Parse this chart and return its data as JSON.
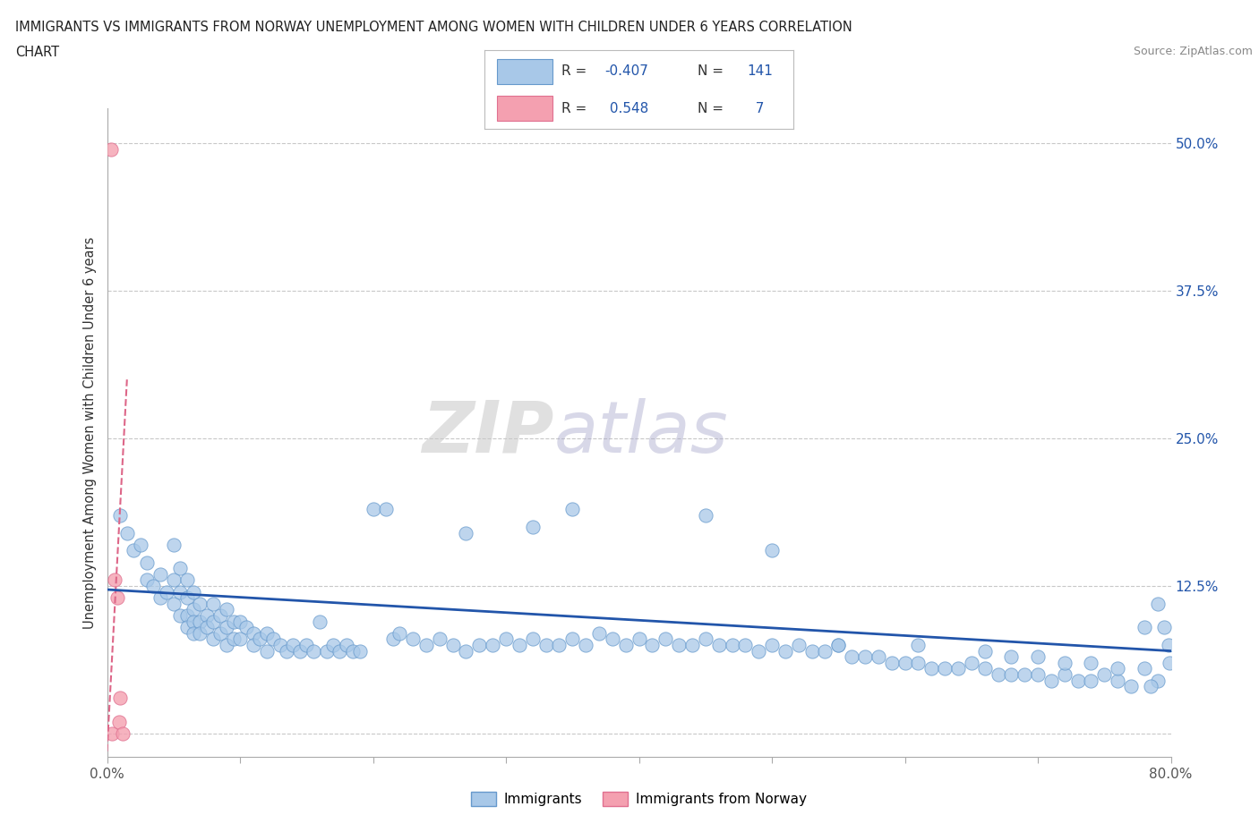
{
  "title_line1": "IMMIGRANTS VS IMMIGRANTS FROM NORWAY UNEMPLOYMENT AMONG WOMEN WITH CHILDREN UNDER 6 YEARS CORRELATION",
  "title_line2": "CHART",
  "source": "Source: ZipAtlas.com",
  "ylabel": "Unemployment Among Women with Children Under 6 years",
  "xmin": 0.0,
  "xmax": 0.8,
  "ymin": -0.02,
  "ymax": 0.53,
  "right_yticks": [
    0.0,
    0.125,
    0.25,
    0.375,
    0.5
  ],
  "right_yticklabels": [
    "",
    "12.5%",
    "25.0%",
    "37.5%",
    "50.0%"
  ],
  "grid_color": "#c8c8c8",
  "background_color": "#ffffff",
  "blue_color": "#a8c8e8",
  "blue_edge_color": "#6699cc",
  "pink_color": "#f4a0b0",
  "pink_edge_color": "#e07090",
  "blue_line_color": "#2255aa",
  "pink_line_color": "#dd6688",
  "R_blue": -0.407,
  "N_blue": 141,
  "R_pink": 0.548,
  "N_pink": 7,
  "blue_scatter_x": [
    0.01,
    0.015,
    0.02,
    0.025,
    0.03,
    0.03,
    0.035,
    0.04,
    0.04,
    0.045,
    0.05,
    0.05,
    0.05,
    0.055,
    0.055,
    0.055,
    0.06,
    0.06,
    0.06,
    0.06,
    0.065,
    0.065,
    0.065,
    0.065,
    0.07,
    0.07,
    0.07,
    0.075,
    0.075,
    0.08,
    0.08,
    0.08,
    0.085,
    0.085,
    0.09,
    0.09,
    0.09,
    0.095,
    0.095,
    0.1,
    0.1,
    0.105,
    0.11,
    0.11,
    0.115,
    0.12,
    0.12,
    0.125,
    0.13,
    0.135,
    0.14,
    0.145,
    0.15,
    0.155,
    0.16,
    0.165,
    0.17,
    0.175,
    0.18,
    0.185,
    0.19,
    0.2,
    0.21,
    0.215,
    0.22,
    0.23,
    0.24,
    0.25,
    0.26,
    0.27,
    0.28,
    0.29,
    0.3,
    0.31,
    0.32,
    0.33,
    0.34,
    0.35,
    0.36,
    0.37,
    0.38,
    0.39,
    0.4,
    0.41,
    0.42,
    0.43,
    0.44,
    0.45,
    0.46,
    0.47,
    0.48,
    0.49,
    0.5,
    0.51,
    0.52,
    0.53,
    0.54,
    0.55,
    0.56,
    0.57,
    0.58,
    0.59,
    0.6,
    0.61,
    0.62,
    0.63,
    0.64,
    0.65,
    0.66,
    0.67,
    0.68,
    0.69,
    0.7,
    0.71,
    0.72,
    0.73,
    0.74,
    0.75,
    0.76,
    0.77,
    0.5,
    0.35,
    0.45,
    0.27,
    0.32,
    0.55,
    0.61,
    0.66,
    0.68,
    0.7,
    0.72,
    0.74,
    0.76,
    0.78,
    0.79,
    0.795,
    0.798,
    0.799,
    0.79,
    0.785,
    0.78
  ],
  "blue_scatter_y": [
    0.185,
    0.17,
    0.155,
    0.16,
    0.145,
    0.13,
    0.125,
    0.135,
    0.115,
    0.12,
    0.16,
    0.13,
    0.11,
    0.14,
    0.12,
    0.1,
    0.13,
    0.115,
    0.1,
    0.09,
    0.12,
    0.105,
    0.095,
    0.085,
    0.11,
    0.095,
    0.085,
    0.1,
    0.09,
    0.11,
    0.095,
    0.08,
    0.1,
    0.085,
    0.105,
    0.09,
    0.075,
    0.095,
    0.08,
    0.095,
    0.08,
    0.09,
    0.085,
    0.075,
    0.08,
    0.085,
    0.07,
    0.08,
    0.075,
    0.07,
    0.075,
    0.07,
    0.075,
    0.07,
    0.095,
    0.07,
    0.075,
    0.07,
    0.075,
    0.07,
    0.07,
    0.19,
    0.19,
    0.08,
    0.085,
    0.08,
    0.075,
    0.08,
    0.075,
    0.07,
    0.075,
    0.075,
    0.08,
    0.075,
    0.08,
    0.075,
    0.075,
    0.08,
    0.075,
    0.085,
    0.08,
    0.075,
    0.08,
    0.075,
    0.08,
    0.075,
    0.075,
    0.08,
    0.075,
    0.075,
    0.075,
    0.07,
    0.075,
    0.07,
    0.075,
    0.07,
    0.07,
    0.075,
    0.065,
    0.065,
    0.065,
    0.06,
    0.06,
    0.06,
    0.055,
    0.055,
    0.055,
    0.06,
    0.055,
    0.05,
    0.05,
    0.05,
    0.05,
    0.045,
    0.05,
    0.045,
    0.045,
    0.05,
    0.045,
    0.04,
    0.155,
    0.19,
    0.185,
    0.17,
    0.175,
    0.075,
    0.075,
    0.07,
    0.065,
    0.065,
    0.06,
    0.06,
    0.055,
    0.055,
    0.11,
    0.09,
    0.075,
    0.06,
    0.045,
    0.04,
    0.09
  ],
  "pink_scatter_x": [
    0.003,
    0.004,
    0.006,
    0.008,
    0.009,
    0.01,
    0.012
  ],
  "pink_scatter_y": [
    0.495,
    0.0,
    0.13,
    0.115,
    0.01,
    0.03,
    0.0
  ],
  "blue_trend_x0": 0.0,
  "blue_trend_y0": 0.122,
  "blue_trend_x1": 0.8,
  "blue_trend_y1": 0.07,
  "pink_trend_x0": 0.0,
  "pink_trend_y0": -0.015,
  "pink_trend_x1": 0.015,
  "pink_trend_y1": 0.3,
  "watermark_text": "ZIPatlas",
  "legend_label_blue": "Immigrants",
  "legend_label_pink": "Immigrants from Norway"
}
